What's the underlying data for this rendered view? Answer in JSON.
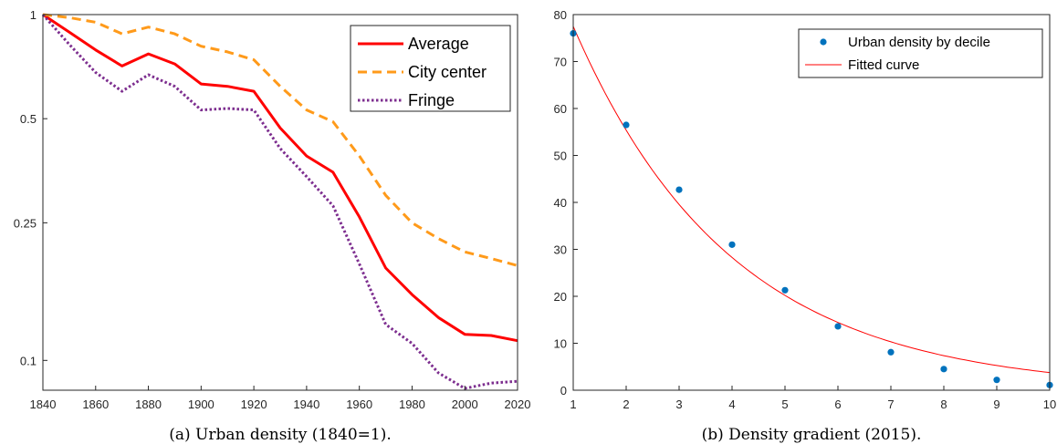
{
  "chart_data": [
    {
      "type": "line",
      "caption": "(a) Urban density (1840=1).",
      "x": [
        1840,
        1850,
        1860,
        1870,
        1880,
        1890,
        1900,
        1910,
        1920,
        1930,
        1940,
        1950,
        1960,
        1970,
        1980,
        1990,
        2000,
        2010,
        2020
      ],
      "xlim": [
        1840,
        2020
      ],
      "xticks": [
        "1840",
        "1860",
        "1880",
        "1900",
        "1920",
        "1940",
        "1960",
        "1980",
        "2000",
        "2020"
      ],
      "yscale": "log",
      "ylim": [
        0.082,
        1.0
      ],
      "yticks": [
        {
          "value": 1,
          "label": "1"
        },
        {
          "value": 0.5,
          "label": "0.5"
        },
        {
          "value": 0.25,
          "label": "0.25"
        },
        {
          "value": 0.1,
          "label": "0.1"
        }
      ],
      "grid": false,
      "legend_position": "top-right",
      "series": [
        {
          "name": "Average",
          "color": "#ff0000",
          "style": "solid",
          "values": [
            1.0,
            0.89,
            0.79,
            0.71,
            0.77,
            0.72,
            0.63,
            0.62,
            0.6,
            0.47,
            0.39,
            0.35,
            0.26,
            0.185,
            0.155,
            0.133,
            0.119,
            0.118,
            0.114
          ]
        },
        {
          "name": "City center",
          "color": "#ff9a1a",
          "style": "dashed",
          "values": [
            1.0,
            0.98,
            0.95,
            0.88,
            0.92,
            0.88,
            0.81,
            0.78,
            0.74,
            0.62,
            0.53,
            0.49,
            0.39,
            0.3,
            0.25,
            0.225,
            0.206,
            0.197,
            0.188
          ]
        },
        {
          "name": "Fringe",
          "color": "#7d2e8f",
          "style": "dotted",
          "values": [
            1.0,
            0.82,
            0.68,
            0.6,
            0.67,
            0.62,
            0.53,
            0.535,
            0.53,
            0.41,
            0.34,
            0.28,
            0.19,
            0.127,
            0.112,
            0.092,
            0.083,
            0.086,
            0.087
          ]
        }
      ]
    },
    {
      "type": "scatter",
      "caption": "(b) Density gradient (2015).",
      "xlim": [
        1,
        10
      ],
      "xticks": [
        "1",
        "2",
        "3",
        "4",
        "5",
        "6",
        "7",
        "8",
        "9",
        "10"
      ],
      "ylim": [
        0,
        80
      ],
      "yticks": [
        "0",
        "10",
        "20",
        "30",
        "40",
        "50",
        "60",
        "70",
        "80"
      ],
      "grid": false,
      "legend_position": "top-right",
      "points": {
        "name": "Urban density by decile",
        "color": "#0072bd",
        "x": [
          1,
          2,
          3,
          4,
          5,
          6,
          7,
          8,
          9,
          10
        ],
        "y": [
          76.0,
          56.5,
          42.7,
          31.0,
          21.3,
          13.6,
          8.1,
          4.5,
          2.2,
          1.1
        ]
      },
      "fit": {
        "name": "Fitted curve",
        "color": "#ff0000",
        "a": 77.5,
        "b": 0.3362
      }
    }
  ]
}
